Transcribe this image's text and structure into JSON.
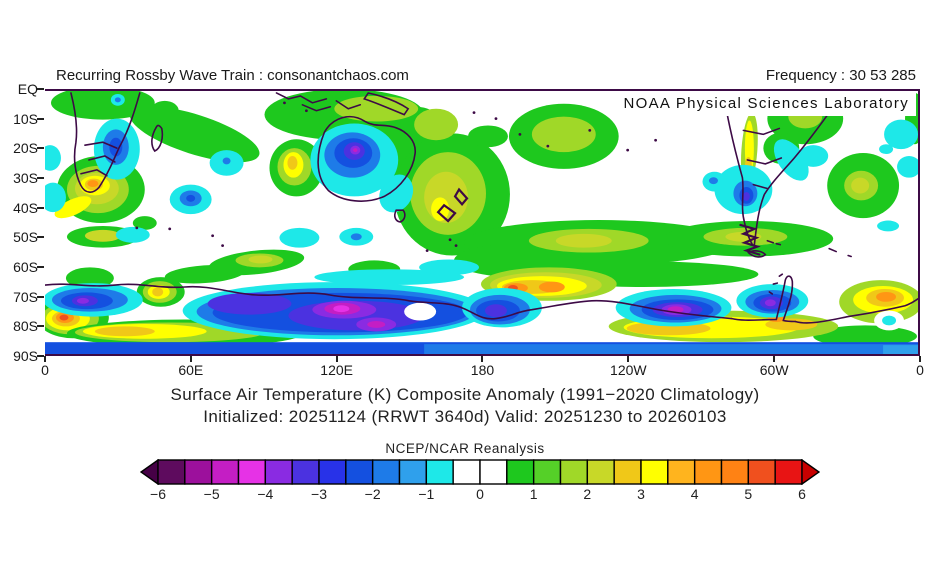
{
  "header": {
    "left": "Recurring Rossby Wave Train : consonantchaos.com",
    "right": "Frequency : 30 53 285"
  },
  "map": {
    "watermark": "NOAA Physical Sciences Laboratory",
    "y_axis": [
      "EQ",
      "10S",
      "20S",
      "30S",
      "40S",
      "50S",
      "60S",
      "70S",
      "80S",
      "90S"
    ],
    "x_axis": [
      "0",
      "60E",
      "120E",
      "180",
      "120W",
      "60W",
      "0"
    ],
    "coastline_color": "#3D0A46",
    "background_anomaly_color": "#FFFFFF"
  },
  "title": {
    "line1": "Surface Air Temperature (K) Composite Anomaly (1991−2020 Climatology)",
    "line2": "Initialized: 20251124 (RRWT 3640d) Valid: 20251230 to 20260103"
  },
  "colorbar": {
    "label": "NCEP/NCAR Reanalysis",
    "units": "K",
    "range": [
      -6,
      6
    ],
    "interval": 0.5,
    "ticks": [
      "−6",
      "−5",
      "−4",
      "−3",
      "−2",
      "−1",
      "0",
      "1",
      "2",
      "3",
      "4",
      "5",
      "6"
    ],
    "left_arrow": "#460046",
    "right_arrow": "#C80000",
    "cells": [
      "#5E0B5E",
      "#9C109C",
      "#C41EC4",
      "#E632E6",
      "#8A2BE2",
      "#4B32E0",
      "#2832E8",
      "#1450E0",
      "#1E7BE8",
      "#2FA0EC",
      "#1EE8E8",
      "#FFFFFF",
      "#FFFFFF",
      "#1EC81E",
      "#55D028",
      "#A0D828",
      "#C8D828",
      "#F0C818",
      "#FFFF00",
      "#FFB41E",
      "#FF9614",
      "#FF8214",
      "#F0501E",
      "#E81414"
    ]
  },
  "anomaly_features": [
    {
      "region": "southern Africa interior",
      "approx_anomaly_K": -2.5
    },
    {
      "region": "South Africa Cape region",
      "approx_anomaly_K": 3.5
    },
    {
      "region": "central / western Australia",
      "approx_anomaly_K": -4.5
    },
    {
      "region": "Indian Ocean west of Australia",
      "approx_anomaly_K": 3
    },
    {
      "region": "Tasman Sea / New Zealand",
      "approx_anomaly_K": 2.5
    },
    {
      "region": "Maritime Continent and tropical west Pacific",
      "approx_anomaly_K": 1.5
    },
    {
      "region": "central South Pacific",
      "approx_anomaly_K": 1.5
    },
    {
      "region": "central Chile",
      "approx_anomaly_K": -3
    },
    {
      "region": "subtropical Andes",
      "approx_anomaly_K": 3
    },
    {
      "region": "Brazil",
      "approx_anomaly_K": 1.5
    },
    {
      "region": "East Antarctica 90E-150E sector",
      "approx_anomaly_K": -5.5
    },
    {
      "region": "Amundsen Sea sector (~110W)",
      "approx_anomaly_K": -5
    },
    {
      "region": "west of Antarctic Peninsula (~70W)",
      "approx_anomaly_K": -4.5
    },
    {
      "region": "Dronning Maud Land coast (~10E)",
      "approx_anomaly_K": 4.5
    },
    {
      "region": "Ross Sea sector (~170W)",
      "approx_anomaly_K": 4
    },
    {
      "region": "West Antarctica interior",
      "approx_anomaly_K": 2.5
    },
    {
      "region": "polar cap 85S-90S band",
      "approx_anomaly_K": -2
    }
  ]
}
